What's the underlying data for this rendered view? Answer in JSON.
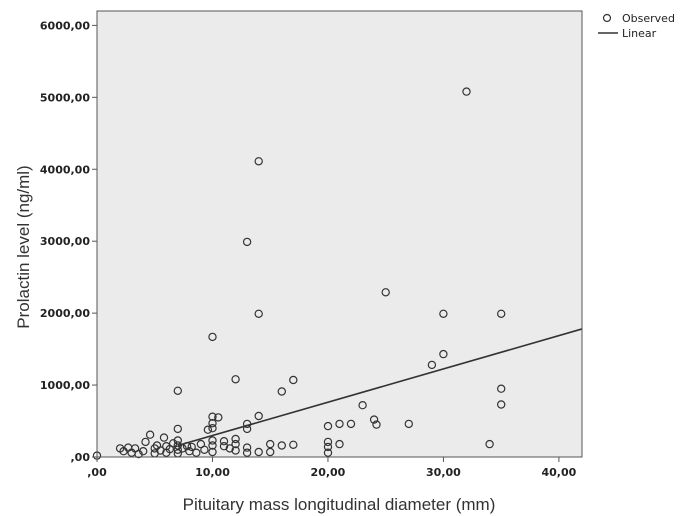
{
  "chart_data": {
    "type": "scatter",
    "xlabel": "Pituitary mass longitudinal diameter (mm)",
    "ylabel": "Prolactin level (ng/ml)",
    "xlim": [
      0,
      42
    ],
    "ylim": [
      0,
      6200
    ],
    "x_ticks": [
      0,
      10,
      20,
      30,
      40
    ],
    "x_tick_labels": [
      ",00",
      "10,00",
      "20,00",
      "30,00",
      "40,00"
    ],
    "y_ticks": [
      0,
      1000,
      2000,
      3000,
      4000,
      5000,
      6000
    ],
    "y_tick_labels": [
      ",00",
      "1000,00",
      "2000,00",
      "3000,00",
      "4000,00",
      "5000,00",
      "6000,00"
    ],
    "grid": false,
    "legend_position": "top-right",
    "background_color": "#ebebeb",
    "series": [
      {
        "name": "Observed",
        "kind": "scatter",
        "marker": "open-circle",
        "color": "#333333",
        "points": [
          [
            0,
            20
          ],
          [
            2,
            120
          ],
          [
            2.3,
            80
          ],
          [
            2.7,
            130
          ],
          [
            3,
            60
          ],
          [
            3.3,
            120
          ],
          [
            3.6,
            40
          ],
          [
            4,
            80
          ],
          [
            4.2,
            210
          ],
          [
            4.6,
            310
          ],
          [
            5,
            50
          ],
          [
            5,
            120
          ],
          [
            5.2,
            160
          ],
          [
            5.5,
            90
          ],
          [
            5.8,
            270
          ],
          [
            6,
            60
          ],
          [
            6,
            150
          ],
          [
            6.3,
            110
          ],
          [
            6.6,
            190
          ],
          [
            7,
            50
          ],
          [
            7,
            100
          ],
          [
            7,
            160
          ],
          [
            7,
            230
          ],
          [
            7,
            390
          ],
          [
            7,
            920
          ],
          [
            7.4,
            120
          ],
          [
            7.8,
            150
          ],
          [
            8,
            80
          ],
          [
            8.2,
            140
          ],
          [
            8.6,
            60
          ],
          [
            9,
            180
          ],
          [
            9.3,
            100
          ],
          [
            9.6,
            380
          ],
          [
            10,
            70
          ],
          [
            10,
            160
          ],
          [
            10,
            230
          ],
          [
            10,
            400
          ],
          [
            10,
            470
          ],
          [
            10,
            560
          ],
          [
            10,
            1670
          ],
          [
            10.5,
            550
          ],
          [
            11,
            150
          ],
          [
            11,
            220
          ],
          [
            11.5,
            120
          ],
          [
            12,
            90
          ],
          [
            12,
            180
          ],
          [
            12,
            250
          ],
          [
            12,
            1080
          ],
          [
            13,
            60
          ],
          [
            13,
            130
          ],
          [
            13,
            390
          ],
          [
            13,
            460
          ],
          [
            13,
            2990
          ],
          [
            14,
            70
          ],
          [
            14,
            570
          ],
          [
            14,
            1990
          ],
          [
            14,
            4110
          ],
          [
            15,
            70
          ],
          [
            15,
            180
          ],
          [
            16,
            160
          ],
          [
            16,
            910
          ],
          [
            17,
            170
          ],
          [
            17,
            1070
          ],
          [
            20,
            60
          ],
          [
            20,
            140
          ],
          [
            20,
            210
          ],
          [
            20,
            430
          ],
          [
            21,
            180
          ],
          [
            21,
            460
          ],
          [
            22,
            460
          ],
          [
            23,
            720
          ],
          [
            24,
            520
          ],
          [
            24.2,
            450
          ],
          [
            25,
            2290
          ],
          [
            27,
            460
          ],
          [
            29,
            1280
          ],
          [
            30,
            1430
          ],
          [
            30,
            1990
          ],
          [
            32,
            5080
          ],
          [
            34,
            180
          ],
          [
            35,
            730
          ],
          [
            35,
            950
          ],
          [
            35,
            1990
          ]
        ]
      },
      {
        "name": "Linear",
        "kind": "line",
        "color": "#333333",
        "points": [
          [
            7,
            160
          ],
          [
            42,
            1780
          ]
        ]
      }
    ]
  }
}
